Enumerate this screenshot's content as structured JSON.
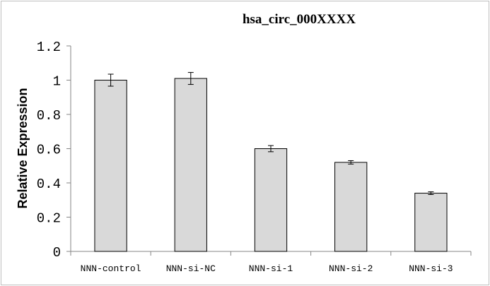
{
  "chart_data": {
    "type": "bar",
    "title": "hsa_circ_000XXXX",
    "xlabel": "",
    "ylabel": "Relative Expression",
    "categories": [
      "NNN-control",
      "NNN-si-NC",
      "NNN-si-1",
      "NNN-si-2",
      "NNN-si-3"
    ],
    "values": [
      1.0,
      1.01,
      0.6,
      0.52,
      0.34
    ],
    "errors": [
      0.035,
      0.035,
      0.018,
      0.01,
      0.008
    ],
    "ylim": [
      0,
      1.2
    ],
    "yticks": [
      "0",
      "0.2",
      "0.4",
      "0.6",
      "0.8",
      "1",
      "1.2"
    ],
    "grid": false,
    "legend": "none",
    "colors": {
      "bar_fill": "#d9d9d9",
      "bar_stroke": "#000000",
      "axis": "#868686"
    }
  }
}
